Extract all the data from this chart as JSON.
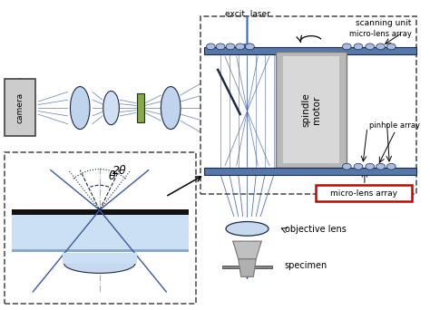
{
  "bg_color": "#ffffff",
  "line_color": "#3a5a9f",
  "dark_line": "#1a2a4a",
  "gray_color": "#888888",
  "light_blue": "#c8d8f0",
  "blue_disk": "#4a6fa5",
  "dashed_box_color": "#555555",
  "red_box_color": "#cc0000",
  "labels": {
    "excit_laser": "excit. laser",
    "scanning_unit": "scanning unit",
    "micro_lens_array_top": "micro-lens array",
    "spindle_motor": "spindle\nmotor",
    "pinhole_array": "pinhole array",
    "micro_lens_array_bot": "micro-lens array",
    "objective_lens": "objective lens",
    "specimen": "specimen",
    "camera": "camera",
    "theta": "θ",
    "two_theta": "2θ"
  }
}
